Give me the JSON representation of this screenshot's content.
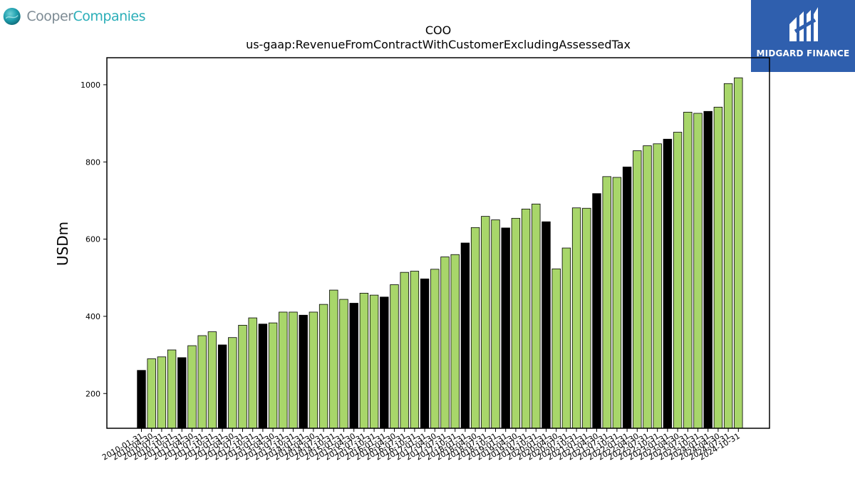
{
  "branding": {
    "left_logo_word1": "Cooper",
    "left_logo_word2": "Companies",
    "right_logo_text": "MIDGARD FINANCE",
    "right_logo_bg": "#2f5fae"
  },
  "chart_data": {
    "type": "bar",
    "title": "COO",
    "subtitle": "us-gaap:RevenueFromContractWithCustomerExcludingAssessedTax",
    "ylabel": "USDm",
    "xlabel": "",
    "ylim": [
      110,
      1070
    ],
    "yticks": [
      200,
      400,
      600,
      800,
      1000
    ],
    "grid": false,
    "colors": {
      "quarter": "#a8d66a",
      "fiscal_q4": "#000000",
      "edge": "#000000"
    },
    "categories": [
      "2010-01-31",
      "2010-04-30",
      "2010-07-31",
      "2010-10-31",
      "2011-01-31",
      "2011-04-30",
      "2011-07-31",
      "2011-10-31",
      "2012-01-31",
      "2012-04-30",
      "2012-07-31",
      "2012-10-31",
      "2013-01-31",
      "2013-04-30",
      "2013-07-31",
      "2013-10-31",
      "2014-01-31",
      "2014-04-30",
      "2014-07-31",
      "2014-10-31",
      "2015-01-31",
      "2015-04-30",
      "2015-07-31",
      "2015-10-31",
      "2016-01-31",
      "2016-04-30",
      "2016-07-31",
      "2016-10-31",
      "2017-01-31",
      "2017-04-30",
      "2017-07-31",
      "2017-10-31",
      "2018-01-31",
      "2018-04-30",
      "2018-07-31",
      "2018-10-31",
      "2019-01-31",
      "2019-04-30",
      "2019-07-31",
      "2019-10-31",
      "2020-01-31",
      "2020-04-30",
      "2020-07-31",
      "2020-10-31",
      "2021-01-31",
      "2021-04-30",
      "2021-07-31",
      "2021-10-31",
      "2022-01-31",
      "2022-04-30",
      "2022-07-31",
      "2022-10-31",
      "2023-01-31",
      "2023-04-30",
      "2023-07-31",
      "2023-10-31",
      "2024-01-31",
      "2024-04-30",
      "2024-07-31",
      "2024-10-31"
    ],
    "values": [
      260,
      290,
      295,
      313,
      293,
      324,
      350,
      360,
      326,
      345,
      377,
      396,
      380,
      383,
      411,
      411,
      403,
      411,
      431,
      468,
      444,
      434,
      460,
      455,
      450,
      482,
      514,
      517,
      497,
      522,
      554,
      560,
      590,
      630,
      659,
      650,
      629,
      654,
      678,
      691,
      645,
      523,
      577,
      681,
      680,
      718,
      762,
      760,
      787,
      829,
      842,
      847,
      859,
      877,
      929,
      926,
      931,
      942,
      1003,
      1018
    ],
    "highlight": [
      true,
      false,
      false,
      false,
      true,
      false,
      false,
      false,
      true,
      false,
      false,
      false,
      true,
      false,
      false,
      false,
      true,
      false,
      false,
      false,
      false,
      true,
      false,
      false,
      true,
      false,
      false,
      false,
      true,
      false,
      false,
      false,
      true,
      false,
      false,
      false,
      true,
      false,
      false,
      false,
      true,
      false,
      false,
      false,
      false,
      true,
      false,
      false,
      true,
      false,
      false,
      false,
      true,
      false,
      false,
      false,
      true,
      false,
      false,
      false
    ]
  }
}
